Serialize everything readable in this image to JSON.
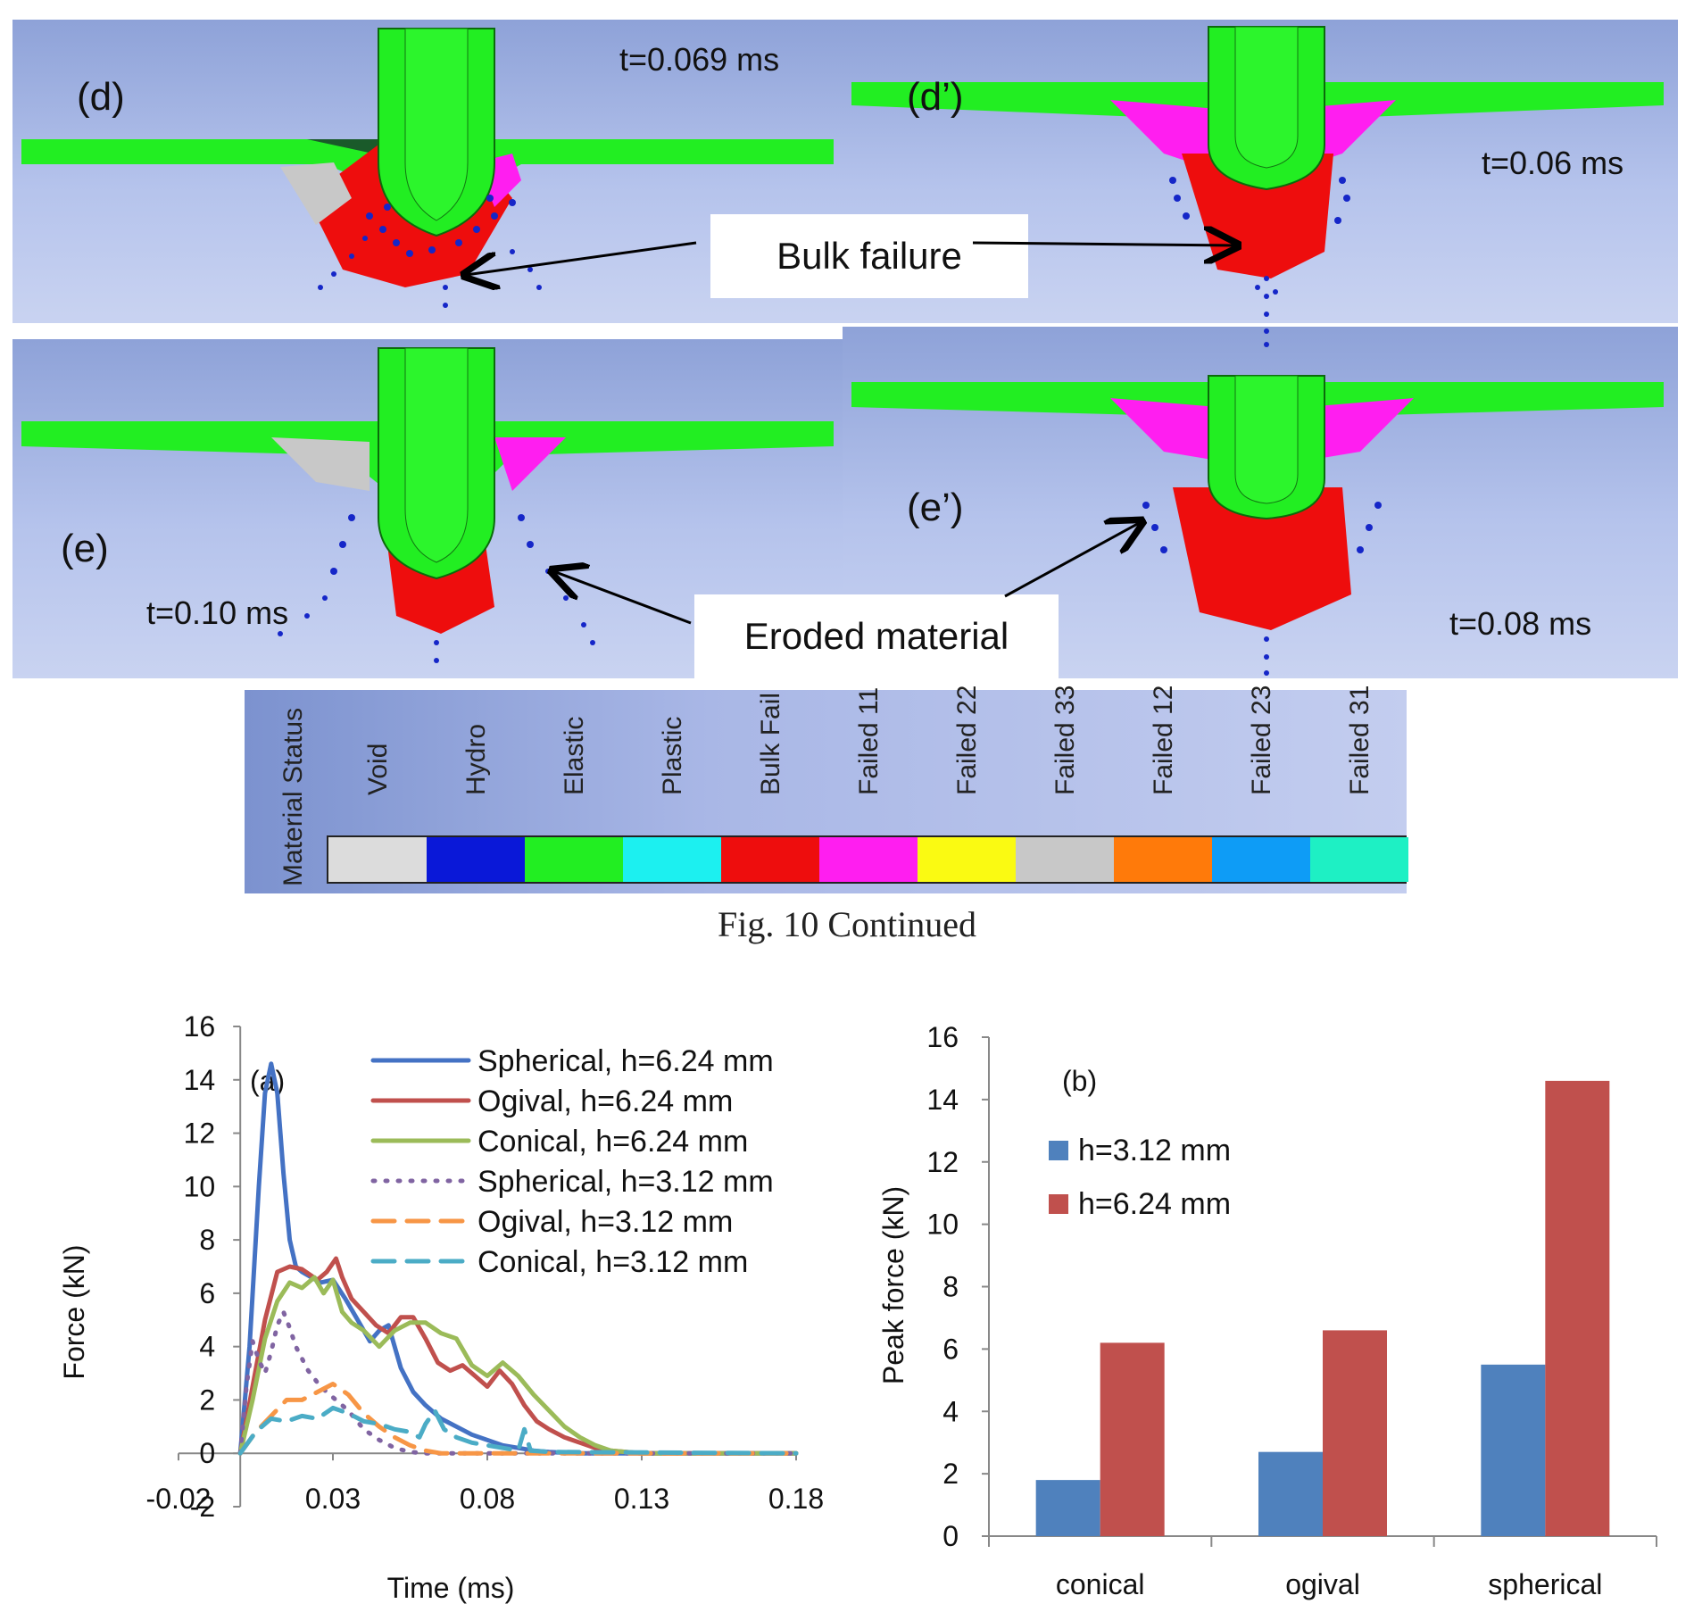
{
  "simulation_panels": {
    "d": {
      "label": "(d)",
      "time": "t=0.069 ms"
    },
    "d_prime": {
      "label": "(d’)",
      "time": "t=0.06 ms"
    },
    "e": {
      "label": "(e)",
      "time": "t=0.10 ms"
    },
    "e_prime": {
      "label": "(e’)",
      "time": "t=0.08 ms"
    },
    "callouts": {
      "bulk_failure": "Bulk failure",
      "eroded_material": "Eroded material"
    }
  },
  "material_legend": {
    "title": "Material Status",
    "items": [
      {
        "label": "Void",
        "color": "#dcdcdc"
      },
      {
        "label": "Hydro",
        "color": "#0a18d8"
      },
      {
        "label": "Elastic",
        "color": "#22ee22"
      },
      {
        "label": "Plastic",
        "color": "#1cf0f0"
      },
      {
        "label": "Bulk Fail",
        "color": "#ee0d0d"
      },
      {
        "label": "Failed 11",
        "color": "#ff1ef0"
      },
      {
        "label": "Failed 22",
        "color": "#fafa12"
      },
      {
        "label": "Failed 33",
        "color": "#c8c8c8"
      },
      {
        "label": "Failed 12",
        "color": "#ff7a0a"
      },
      {
        "label": "Failed 23",
        "color": "#0e9cf6"
      },
      {
        "label": "Failed 31",
        "color": "#1ef0c4"
      }
    ]
  },
  "caption": "Fig. 10 Continued",
  "chart_data": [
    {
      "type": "line",
      "label": "(a)",
      "xlabel": "Time (ms)",
      "ylabel": "Force (kN)",
      "xlim": [
        -0.02,
        0.18
      ],
      "ylim": [
        -2,
        16
      ],
      "xticks": [
        -0.02,
        0.03,
        0.08,
        0.13,
        0.18
      ],
      "xtick_labels": [
        "-0.02",
        "0.03",
        "0.08",
        "0.13",
        "0.18"
      ],
      "yticks": [
        -2,
        0,
        2,
        4,
        6,
        8,
        10,
        12,
        14,
        16
      ],
      "ytick_labels": [
        "-2",
        "0",
        "2",
        "4",
        "6",
        "8",
        "10",
        "12",
        "14",
        "16"
      ],
      "series": [
        {
          "name": "Spherical, h=6.24 mm",
          "color": "#4472c4",
          "dash": "solid",
          "x": [
            0,
            0.003,
            0.006,
            0.008,
            0.01,
            0.012,
            0.014,
            0.016,
            0.018,
            0.02,
            0.023,
            0.026,
            0.03,
            0.034,
            0.038,
            0.042,
            0.045,
            0.048,
            0.052,
            0.056,
            0.06,
            0.065,
            0.07,
            0.075,
            0.08,
            0.085,
            0.09,
            0.095,
            0.1,
            0.11,
            0.12,
            0.18
          ],
          "y": [
            0,
            4,
            10,
            13.5,
            14.6,
            13.5,
            10.5,
            8,
            7,
            6.8,
            6.6,
            6.4,
            6.5,
            5.8,
            5,
            4.2,
            4.6,
            4.8,
            3.2,
            2.3,
            1.8,
            1.3,
            1,
            0.7,
            0.5,
            0.3,
            0.2,
            0.1,
            0.05,
            0,
            0,
            0
          ]
        },
        {
          "name": "Ogival, h=6.24 mm",
          "color": "#c0504d",
          "dash": "solid",
          "x": [
            0,
            0.004,
            0.008,
            0.012,
            0.016,
            0.02,
            0.025,
            0.028,
            0.031,
            0.033,
            0.036,
            0.04,
            0.044,
            0.048,
            0.052,
            0.056,
            0.06,
            0.064,
            0.068,
            0.072,
            0.076,
            0.08,
            0.084,
            0.088,
            0.092,
            0.096,
            0.1,
            0.105,
            0.11,
            0.115,
            0.12,
            0.13,
            0.18
          ],
          "y": [
            0,
            2.5,
            5,
            6.8,
            7,
            6.9,
            6.5,
            6.8,
            7.3,
            6.6,
            5.8,
            5.3,
            4.8,
            4.5,
            5.1,
            5.1,
            4.3,
            3.4,
            3.1,
            3.3,
            2.9,
            2.5,
            3.1,
            2.6,
            1.8,
            1.2,
            0.9,
            0.6,
            0.4,
            0.2,
            0.1,
            0,
            0
          ]
        },
        {
          "name": "Conical, h=6.24 mm",
          "color": "#9bbb59",
          "dash": "solid",
          "x": [
            0,
            0.004,
            0.008,
            0.012,
            0.016,
            0.02,
            0.024,
            0.027,
            0.03,
            0.033,
            0.036,
            0.04,
            0.045,
            0.05,
            0.055,
            0.06,
            0.065,
            0.07,
            0.075,
            0.08,
            0.085,
            0.09,
            0.095,
            0.1,
            0.105,
            0.11,
            0.115,
            0.12,
            0.13,
            0.18
          ],
          "y": [
            0,
            2,
            4.3,
            5.7,
            6.4,
            6.2,
            6.6,
            6,
            6.5,
            5.3,
            4.9,
            4.6,
            4,
            4.6,
            4.9,
            4.9,
            4.5,
            4.3,
            3.3,
            2.9,
            3.4,
            2.9,
            2.2,
            1.6,
            1,
            0.6,
            0.3,
            0.1,
            0,
            0
          ]
        },
        {
          "name": "Spherical, h=3.12 mm",
          "color": "#8064a2",
          "dash": "dot",
          "x": [
            0,
            0.002,
            0.004,
            0.006,
            0.008,
            0.01,
            0.012,
            0.014,
            0.016,
            0.018,
            0.022,
            0.026,
            0.03,
            0.035,
            0.04,
            0.045,
            0.05,
            0.055,
            0.06,
            0.065,
            0.18
          ],
          "y": [
            0,
            2.5,
            4.2,
            3.5,
            3,
            3.8,
            4.8,
            5.3,
            4.7,
            4,
            3.1,
            2.5,
            2.1,
            1.6,
            0.9,
            0.5,
            0.2,
            0.05,
            0,
            0,
            0
          ]
        },
        {
          "name": "Ogival, h=3.12 mm",
          "color": "#f79646",
          "dash": "dash",
          "x": [
            0,
            0.005,
            0.01,
            0.015,
            0.02,
            0.025,
            0.03,
            0.035,
            0.04,
            0.045,
            0.05,
            0.055,
            0.06,
            0.065,
            0.07,
            0.18
          ],
          "y": [
            0,
            0.8,
            1.4,
            2,
            2,
            2.3,
            2.6,
            2.2,
            1.5,
            1,
            0.6,
            0.3,
            0.1,
            0,
            0,
            0
          ]
        },
        {
          "name": "Conical, h=3.12 mm",
          "color": "#4bacc6",
          "dash": "dash",
          "x": [
            0,
            0.005,
            0.01,
            0.015,
            0.02,
            0.025,
            0.03,
            0.035,
            0.04,
            0.045,
            0.05,
            0.055,
            0.058,
            0.06,
            0.063,
            0.066,
            0.07,
            0.075,
            0.08,
            0.085,
            0.09,
            0.092,
            0.094,
            0.1,
            0.18
          ],
          "y": [
            0,
            0.8,
            1.3,
            1.2,
            1.4,
            1.3,
            1.7,
            1.5,
            1.2,
            1.1,
            0.9,
            0.8,
            0.6,
            1.1,
            1.6,
            0.9,
            0.6,
            0.4,
            0.3,
            0.2,
            0.1,
            0.9,
            0.1,
            0.05,
            0
          ]
        }
      ]
    },
    {
      "type": "bar",
      "label": "(b)",
      "ylabel": "Peak force (kN)",
      "categories": [
        "conical",
        "ogival",
        "spherical"
      ],
      "ylim": [
        0,
        16
      ],
      "yticks": [
        0,
        2,
        4,
        6,
        8,
        10,
        12,
        14,
        16
      ],
      "ytick_labels": [
        "0",
        "2",
        "4",
        "6",
        "8",
        "10",
        "12",
        "14",
        "16"
      ],
      "series": [
        {
          "name": "h=3.12 mm",
          "color": "#4f81bd",
          "values": [
            1.8,
            2.7,
            5.5
          ]
        },
        {
          "name": "h=6.24 mm",
          "color": "#c0504d",
          "values": [
            6.2,
            6.6,
            14.6
          ]
        }
      ]
    }
  ]
}
